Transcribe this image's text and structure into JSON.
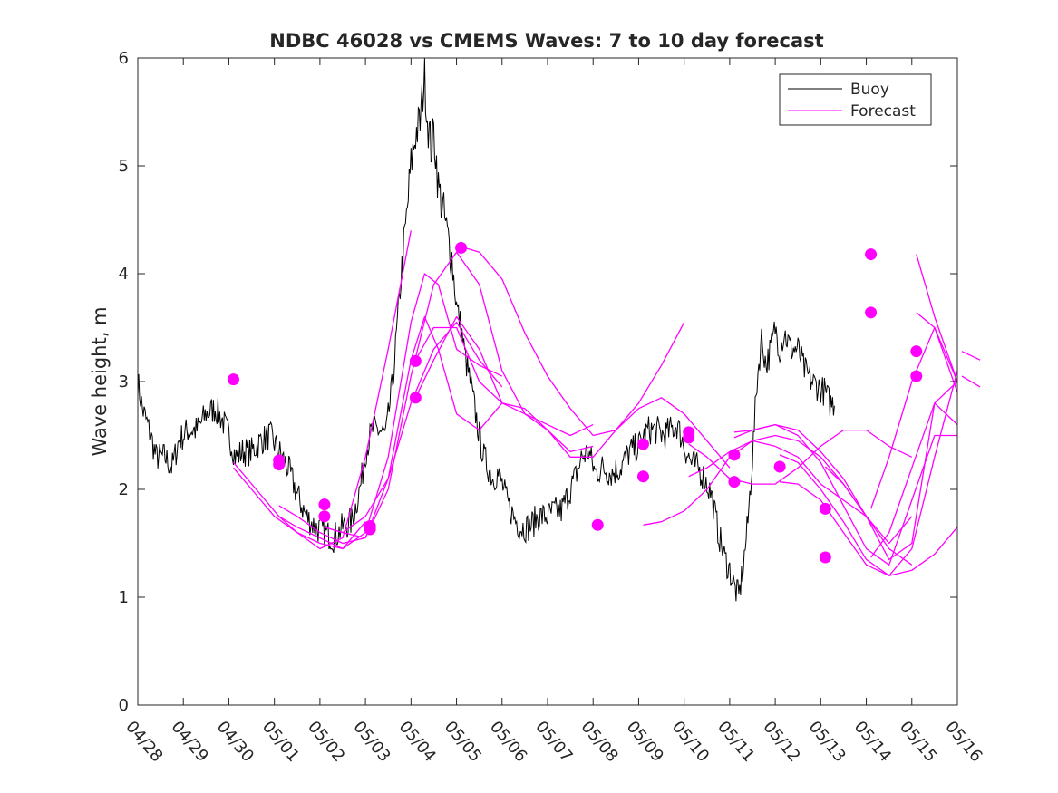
{
  "chart_data": {
    "type": "line",
    "title": "NDBC 46028 vs CMEMS Waves: 7 to 10 day forecast",
    "xlabel": "",
    "ylabel": "Wave height, m",
    "x_axis": {
      "type": "date",
      "range": [
        "04/28",
        "05/16"
      ],
      "ticks": [
        "04/28",
        "04/29",
        "04/30",
        "05/01",
        "05/02",
        "05/03",
        "05/04",
        "05/05",
        "05/06",
        "05/07",
        "05/08",
        "05/09",
        "05/10",
        "05/11",
        "05/12",
        "05/13",
        "05/14",
        "05/15",
        "05/16"
      ]
    },
    "ylim": [
      0,
      6
    ],
    "yticks": [
      0,
      1,
      2,
      3,
      4,
      5,
      6
    ],
    "grid": false,
    "legend": {
      "position": "top-right",
      "entries": [
        {
          "name": "Buoy",
          "color": "#000000"
        },
        {
          "name": "Forecast",
          "color": "#ff00ff"
        }
      ]
    },
    "series": [
      {
        "name": "Buoy",
        "color": "#000000",
        "x_days": [
          0.0,
          0.1,
          0.25,
          0.4,
          0.6,
          0.75,
          0.9,
          1.1,
          1.3,
          1.5,
          1.7,
          1.85,
          2.0,
          2.15,
          2.3,
          2.5,
          2.7,
          2.9,
          3.1,
          3.3,
          3.5,
          3.7,
          3.9,
          4.1,
          4.3,
          4.5,
          4.7,
          4.9,
          5.0,
          5.15,
          5.3,
          5.45,
          5.6,
          5.75,
          5.9,
          6.0,
          6.1,
          6.2,
          6.3,
          6.35,
          6.4,
          6.45,
          6.5,
          6.55,
          6.6,
          6.7,
          6.8,
          6.9,
          7.0,
          7.1,
          7.2,
          7.3,
          7.4,
          7.5,
          7.6,
          7.7,
          7.8,
          7.9,
          8.0,
          8.1,
          8.25,
          8.4,
          8.6,
          8.8,
          9.0,
          9.15,
          9.3,
          9.45,
          9.6,
          9.75,
          9.9,
          10.05,
          10.2,
          10.4,
          10.6,
          10.8,
          11.0,
          11.2,
          11.4,
          11.55,
          11.7,
          11.85,
          12.0,
          12.15,
          12.3,
          12.45,
          12.6,
          12.75,
          12.9,
          13.0,
          13.1,
          13.2,
          13.3,
          13.4,
          13.5,
          13.6,
          13.7,
          13.8,
          13.9,
          14.0,
          14.1,
          14.2,
          14.35,
          14.5,
          14.65,
          14.8,
          14.95,
          15.1,
          15.2,
          15.3
        ],
        "y": [
          3.0,
          2.75,
          2.55,
          2.3,
          2.3,
          2.2,
          2.45,
          2.55,
          2.55,
          2.7,
          2.75,
          2.65,
          2.5,
          2.3,
          2.35,
          2.35,
          2.45,
          2.5,
          2.35,
          2.2,
          1.95,
          1.75,
          1.65,
          1.6,
          1.55,
          1.65,
          1.7,
          2.05,
          2.35,
          2.55,
          2.55,
          2.5,
          3.0,
          3.8,
          4.5,
          5.0,
          5.3,
          5.4,
          5.85,
          5.5,
          5.3,
          5.15,
          5.3,
          5.1,
          4.8,
          4.6,
          4.35,
          4.15,
          3.7,
          3.5,
          3.2,
          3.0,
          2.75,
          2.5,
          2.3,
          2.2,
          2.1,
          2.15,
          2.05,
          1.9,
          1.75,
          1.65,
          1.65,
          1.75,
          1.75,
          1.8,
          1.8,
          1.95,
          2.1,
          2.3,
          2.35,
          2.15,
          2.2,
          2.15,
          2.2,
          2.35,
          2.4,
          2.55,
          2.55,
          2.5,
          2.55,
          2.6,
          2.4,
          2.25,
          2.2,
          2.1,
          1.95,
          1.6,
          1.35,
          1.25,
          1.1,
          1.0,
          1.3,
          1.7,
          2.3,
          3.0,
          3.4,
          3.15,
          3.3,
          3.5,
          3.3,
          3.45,
          3.3,
          3.3,
          3.1,
          3.0,
          2.95,
          2.9,
          2.8,
          2.8
        ]
      },
      {
        "name": "Forecast",
        "color": "#ff00ff",
        "runs": [
          {
            "x_days": [
              2.1,
              2.5,
              3.0,
              3.5,
              4.0,
              4.5,
              5.0
            ],
            "y": [
              2.2,
              2.0,
              1.75,
              1.6,
              1.5,
              1.45,
              1.7
            ]
          },
          {
            "x_days": [
              2.1,
              2.6,
              3.1,
              3.5,
              4.0,
              4.5,
              5.0,
              5.5,
              6.0
            ],
            "y": [
              2.25,
              2.0,
              1.75,
              1.6,
              1.45,
              1.55,
              2.3,
              3.3,
              4.4
            ]
          },
          {
            "x_days": [
              3.1,
              3.5,
              4.0,
              4.5,
              5.0,
              5.5,
              6.0,
              6.3,
              6.6,
              7.0,
              7.5,
              8.0
            ],
            "y": [
              1.85,
              1.75,
              1.6,
              1.5,
              1.55,
              2.1,
              3.2,
              3.6,
              3.3,
              2.7,
              2.55,
              2.8
            ]
          },
          {
            "x_days": [
              3.1,
              3.5,
              4.0,
              4.5,
              5.0,
              5.5,
              6.0,
              6.3,
              6.6,
              7.0,
              7.5,
              8.0
            ],
            "y": [
              1.75,
              1.65,
              1.55,
              1.45,
              1.6,
              2.3,
              3.55,
              4.0,
              3.9,
              3.3,
              3.15,
              3.05
            ]
          },
          {
            "x_days": [
              4.1,
              4.5,
              5.0,
              5.5,
              6.0,
              6.5,
              7.0,
              7.5,
              8.0,
              8.5,
              9.0,
              9.5,
              10.0
            ],
            "y": [
              1.65,
              1.6,
              1.55,
              2.0,
              3.05,
              3.9,
              4.2,
              3.9,
              3.1,
              2.7,
              2.6,
              2.5,
              2.6
            ]
          },
          {
            "x_days": [
              4.1,
              4.5,
              5.0,
              5.5,
              6.0,
              6.5,
              7.0,
              7.5,
              8.0
            ],
            "y": [
              1.65,
              1.6,
              1.75,
              2.1,
              2.8,
              3.3,
              3.55,
              3.2,
              2.95
            ]
          },
          {
            "x_days": [
              6.1,
              6.5,
              7.0,
              7.5,
              8.0,
              8.5,
              9.0,
              9.5,
              10.0
            ],
            "y": [
              3.2,
              3.5,
              3.5,
              3.0,
              2.8,
              2.7,
              2.55,
              2.35,
              2.4
            ]
          },
          {
            "x_days": [
              6.1,
              6.5,
              7.0,
              7.5,
              8.0,
              8.5,
              9.0,
              9.5,
              10.0,
              10.5,
              11.0,
              11.5,
              12.0
            ],
            "y": [
              2.85,
              3.2,
              3.6,
              3.3,
              2.8,
              2.75,
              2.55,
              2.3,
              2.3,
              2.55,
              2.8,
              3.15,
              3.55
            ]
          },
          {
            "x_days": [
              7.1,
              7.5,
              8.0,
              8.5,
              9.0,
              9.5,
              10.0,
              10.5,
              11.0,
              11.5,
              12.0,
              12.5,
              13.0
            ],
            "y": [
              4.25,
              4.2,
              3.95,
              3.45,
              3.05,
              2.75,
              2.5,
              2.55,
              2.75,
              2.85,
              2.7,
              2.45,
              2.2
            ]
          },
          {
            "x_days": [
              11.1,
              11.5,
              12.0,
              12.5,
              13.0,
              13.5,
              14.0,
              14.5,
              15.0,
              15.5,
              16.0
            ],
            "y": [
              1.67,
              1.7,
              1.8,
              2.0,
              2.3,
              2.45,
              2.4,
              2.3,
              2.05,
              1.9,
              1.75
            ]
          },
          {
            "x_days": [
              12.1,
              12.5,
              13.0,
              13.5,
              14.0,
              14.5,
              15.0,
              15.5,
              16.0,
              16.5,
              17.0
            ],
            "y": [
              2.42,
              2.3,
              2.1,
              2.05,
              2.05,
              2.2,
              2.4,
              2.55,
              2.55,
              2.4,
              2.3
            ]
          },
          {
            "x_days": [
              12.1,
              12.5,
              13.0,
              13.5,
              14.0,
              14.5,
              15.0,
              15.5,
              16.0,
              16.5,
              17.0
            ],
            "y": [
              2.12,
              2.2,
              2.35,
              2.45,
              2.5,
              2.45,
              2.3,
              2.05,
              1.75,
              1.45,
              1.3
            ]
          },
          {
            "x_days": [
              13.1,
              13.5,
              14.0,
              14.5,
              15.0,
              15.5,
              16.0,
              16.5,
              17.0
            ],
            "y": [
              2.53,
              2.55,
              2.6,
              2.55,
              2.35,
              2.1,
              1.75,
              1.5,
              1.75
            ]
          },
          {
            "x_days": [
              13.1,
              13.5,
              14.0,
              14.5,
              15.0,
              15.5,
              16.0,
              16.5,
              17.0,
              17.5,
              18.0
            ],
            "y": [
              2.48,
              2.55,
              2.6,
              2.5,
              2.25,
              1.85,
              1.45,
              1.3,
              1.9,
              2.5,
              2.5
            ]
          },
          {
            "x_days": [
              14.1,
              14.5,
              15.0,
              15.5,
              16.0,
              16.5,
              17.0,
              17.5,
              18.0
            ],
            "y": [
              2.32,
              2.25,
              2.0,
              1.7,
              1.35,
              1.2,
              1.25,
              1.4,
              1.65
            ]
          },
          {
            "x_days": [
              14.1,
              14.5,
              15.0,
              15.5,
              16.0,
              16.5,
              17.0,
              17.5,
              18.0
            ],
            "y": [
              2.07,
              2.05,
              1.9,
              1.6,
              1.3,
              1.2,
              1.45,
              2.3,
              3.1
            ]
          },
          {
            "x_days": [
              15.1,
              15.5,
              16.0,
              16.5,
              17.0,
              17.5,
              18.0
            ],
            "y": [
              2.21,
              2.05,
              1.75,
              1.35,
              1.5,
              2.8,
              3.0
            ]
          },
          {
            "x_days": [
              16.1,
              16.5,
              17.0,
              17.5,
              18.0
            ],
            "y": [
              1.82,
              2.3,
              3.0,
              3.5,
              3.0
            ]
          },
          {
            "x_days": [
              16.1,
              16.5,
              17.0,
              17.5,
              18.0
            ],
            "y": [
              1.37,
              1.6,
              2.2,
              2.8,
              2.6
            ]
          },
          {
            "x_days": [
              17.1,
              17.5,
              18.0
            ],
            "y": [
              4.18,
              3.6,
              3.0
            ]
          },
          {
            "x_days": [
              17.1,
              17.5,
              18.0
            ],
            "y": [
              3.64,
              3.5,
              2.9
            ]
          },
          {
            "x_days": [
              18.1,
              18.5
            ],
            "y": [
              3.28,
              3.2
            ]
          },
          {
            "x_days": [
              18.1,
              18.5
            ],
            "y": [
              3.05,
              2.95
            ]
          }
        ],
        "markers": [
          {
            "x_days": 2.1,
            "y": 3.02
          },
          {
            "x_days": 3.1,
            "y": 2.27
          },
          {
            "x_days": 3.1,
            "y": 2.23
          },
          {
            "x_days": 4.1,
            "y": 1.86
          },
          {
            "x_days": 4.1,
            "y": 1.75
          },
          {
            "x_days": 5.1,
            "y": 1.66
          },
          {
            "x_days": 5.1,
            "y": 1.63
          },
          {
            "x_days": 6.1,
            "y": 3.19
          },
          {
            "x_days": 6.1,
            "y": 2.85
          },
          {
            "x_days": 7.1,
            "y": 4.24
          },
          {
            "x_days": 10.1,
            "y": 1.67
          },
          {
            "x_days": 11.1,
            "y": 2.42
          },
          {
            "x_days": 11.1,
            "y": 2.12
          },
          {
            "x_days": 12.1,
            "y": 2.53
          },
          {
            "x_days": 12.1,
            "y": 2.48
          },
          {
            "x_days": 13.1,
            "y": 2.32
          },
          {
            "x_days": 13.1,
            "y": 2.07
          },
          {
            "x_days": 14.1,
            "y": 2.21
          },
          {
            "x_days": 15.1,
            "y": 1.82
          },
          {
            "x_days": 15.1,
            "y": 1.37
          },
          {
            "x_days": 16.1,
            "y": 4.18
          },
          {
            "x_days": 16.1,
            "y": 3.64
          },
          {
            "x_days": 17.1,
            "y": 3.28
          },
          {
            "x_days": 17.1,
            "y": 3.05
          }
        ]
      }
    ]
  }
}
